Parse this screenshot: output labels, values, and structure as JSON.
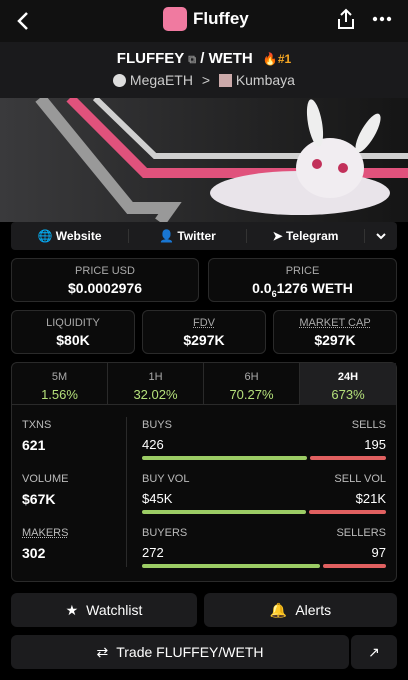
{
  "header": {
    "title": "Fluffey"
  },
  "pair": {
    "base": "FLUFFEY",
    "separator": "/",
    "quote": "WETH",
    "rank": "#1",
    "chain": "MegaETH",
    "dex": "Kumbaya"
  },
  "links": [
    "Website",
    "Twitter",
    "Telegram"
  ],
  "price_usd": {
    "label": "PRICE USD",
    "value": "$0.0002976"
  },
  "price": {
    "label": "PRICE",
    "lead": "0.0",
    "zeros": "6",
    "tail": "1276 WETH"
  },
  "metrics": [
    {
      "label": "LIQUIDITY",
      "value": "$80K"
    },
    {
      "label": "FDV",
      "value": "$297K"
    },
    {
      "label": "MARKET CAP",
      "value": "$297K"
    }
  ],
  "timeframes": [
    {
      "label": "5M",
      "change": "1.56%"
    },
    {
      "label": "1H",
      "change": "32.02%"
    },
    {
      "label": "6H",
      "change": "70.27%"
    },
    {
      "label": "24H",
      "change": "673%"
    }
  ],
  "rows": [
    {
      "label": "TXNS",
      "total": "621",
      "left_label": "BUYS",
      "left": "426",
      "right_label": "SELLS",
      "right": "195"
    },
    {
      "label": "VOLUME",
      "total": "$67K",
      "left_label": "BUY VOL",
      "left": "$45K",
      "right_label": "SELL VOL",
      "right": "$21K"
    },
    {
      "label": "MAKERS",
      "total": "302",
      "left_label": "BUYERS",
      "left": "272",
      "right_label": "SELLERS",
      "right": "97"
    }
  ],
  "buttons": {
    "watchlist": "Watchlist",
    "alerts": "Alerts",
    "trade": "Trade FLUFFEY/WETH"
  }
}
